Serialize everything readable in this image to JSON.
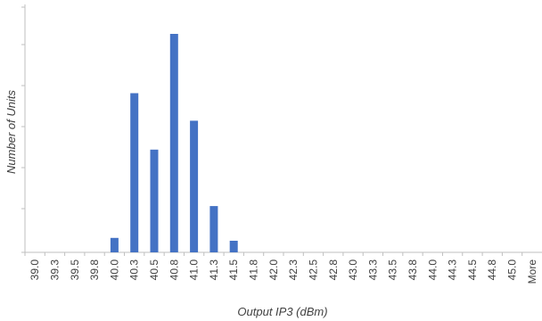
{
  "chart_data": {
    "type": "bar",
    "title": "",
    "xlabel": "Output IP3 (dBm)",
    "ylabel": "Number of Units",
    "categories": [
      "39.0",
      "39.3",
      "39.5",
      "39.8",
      "40.0",
      "40.3",
      "40.5",
      "40.8",
      "41.0",
      "41.3",
      "41.5",
      "41.8",
      "42.0",
      "42.3",
      "42.5",
      "42.8",
      "43.0",
      "43.3",
      "43.5",
      "43.8",
      "44.0",
      "44.3",
      "44.5",
      "44.8",
      "45.0",
      "More"
    ],
    "values": [
      0,
      0,
      0,
      0,
      1,
      11,
      7.1,
      15.1,
      9.1,
      3.2,
      0.8,
      0,
      0,
      0,
      0,
      0,
      0,
      0,
      0,
      0,
      0,
      0,
      0,
      0,
      0,
      0
    ],
    "ylim": [
      0,
      15.1
    ],
    "bar_color": "#4472C4",
    "grid": false,
    "legend": "none"
  }
}
